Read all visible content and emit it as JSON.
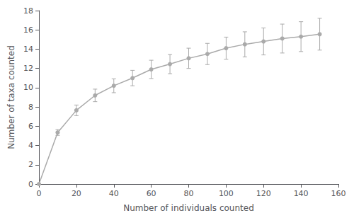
{
  "chart_data": {
    "type": "line",
    "xlabel": "Number of individuals counted",
    "ylabel": "Number of taxa counted",
    "x": [
      0,
      10,
      20,
      30,
      40,
      50,
      60,
      70,
      80,
      90,
      100,
      110,
      120,
      130,
      140,
      150
    ],
    "series": [
      {
        "type": "line",
        "color": "#aaaaaa",
        "marker": "circle",
        "values": [
          0.0,
          5.35,
          7.65,
          9.2,
          10.2,
          11.0,
          11.9,
          12.45,
          13.05,
          13.5,
          14.1,
          14.5,
          14.8,
          15.1,
          15.3,
          15.55
        ],
        "yerr": [
          0.0,
          0.3,
          0.55,
          0.65,
          0.72,
          0.8,
          0.95,
          1.0,
          1.05,
          1.1,
          1.15,
          1.3,
          1.4,
          1.5,
          1.55,
          1.65
        ]
      }
    ],
    "xlim": [
      0,
      160
    ],
    "ylim": [
      0,
      18
    ],
    "xticks": [
      0,
      20,
      40,
      60,
      80,
      100,
      120,
      140,
      160
    ],
    "yticks": [
      0,
      2,
      4,
      6,
      8,
      10,
      12,
      14,
      16,
      18
    ],
    "grid": false
  }
}
